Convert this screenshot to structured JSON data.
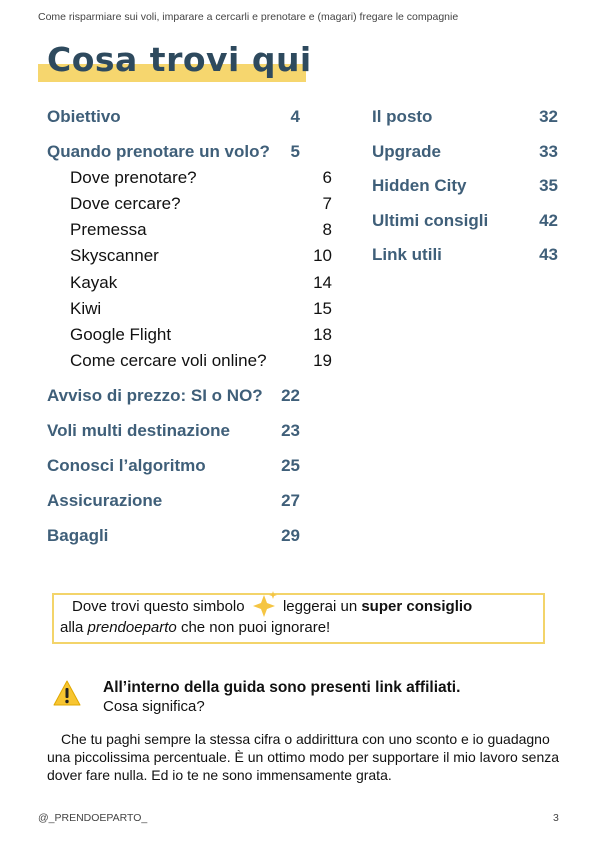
{
  "header": {
    "running_title": "Come risparmiare sui voli, imparare a cercarli e prenotare e (magari) fregare le compagnie"
  },
  "title": "Cosa trovi qui",
  "toc": {
    "left": [
      {
        "label": "Obiettivo",
        "page": 4
      },
      {
        "label": "Quando prenotare un volo?",
        "page": 5,
        "children": [
          {
            "label": "Dove prenotare?",
            "page": 6
          },
          {
            "label": "Dove cercare?",
            "page": 7
          },
          {
            "label": "Premessa",
            "page": 8
          },
          {
            "label": "Skyscanner",
            "page": 10
          },
          {
            "label": "Kayak",
            "page": 14
          },
          {
            "label": "Kiwi",
            "page": 15
          },
          {
            "label": "Google Flight",
            "page": 18
          },
          {
            "label": "Come cercare voli online?",
            "page": 19
          }
        ]
      },
      {
        "label": "Avviso di prezzo: SI o NO?",
        "page": 22
      },
      {
        "label": "Voli multi destinazione",
        "page": 23
      },
      {
        "label": "Conosci l’algoritmo",
        "page": 25
      },
      {
        "label": "Assicurazione",
        "page": 27
      },
      {
        "label": "Bagagli",
        "page": 29
      }
    ],
    "right": [
      {
        "label": "Il posto",
        "page": 32
      },
      {
        "label": "Upgrade",
        "page": 33
      },
      {
        "label": "Hidden City",
        "page": 35
      },
      {
        "label": "Ultimi consigli",
        "page": 42
      },
      {
        "label": "Link utili",
        "page": 43
      }
    ]
  },
  "callout": {
    "line1": [
      "Dove trovi questo simbolo",
      "leggerai un",
      "super consiglio"
    ],
    "line2": [
      "alla",
      "prendoeparto",
      "che non puoi ignorare!"
    ]
  },
  "notice": {
    "title": "All’interno della guida sono presenti link affiliati.",
    "question": "Cosa significa?",
    "body": "Che tu paghi sempre la stessa cifra o addirittura con uno sconto e io guadagno una piccolissima percentuale. È un ottimo modo per supportare il mio lavoro senza dover fare nulla. Ed io te ne sono immensamente grata."
  },
  "footer": {
    "handle": "@_PRENDOEPARTO_",
    "page_number": 3
  }
}
